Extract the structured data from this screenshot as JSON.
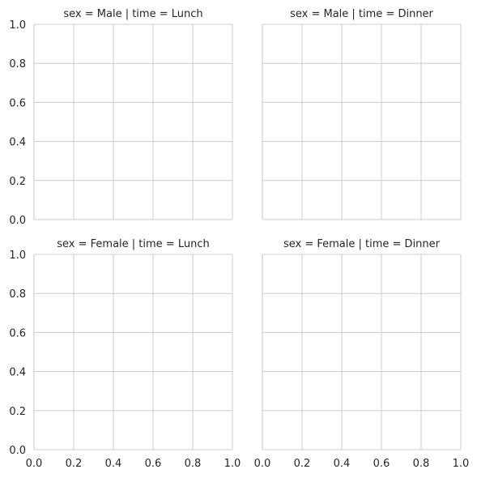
{
  "chart_data": {
    "type": "scatter",
    "layout": "facet-grid",
    "row_variable": "sex",
    "col_variable": "time",
    "xlim": [
      0,
      1
    ],
    "ylim": [
      0,
      1
    ],
    "x_ticks": [
      0.0,
      0.2,
      0.4,
      0.6,
      0.8,
      1.0
    ],
    "y_ticks": [
      0.0,
      0.2,
      0.4,
      0.6,
      0.8,
      1.0
    ],
    "x_tick_labels": [
      "0.0",
      "0.2",
      "0.4",
      "0.6",
      "0.8",
      "1.0"
    ],
    "y_tick_labels": [
      "0.0",
      "0.2",
      "0.4",
      "0.6",
      "0.8",
      "1.0"
    ],
    "grid": true,
    "facets": [
      {
        "title": "sex = Male | time = Lunch",
        "row": 0,
        "col": 0,
        "points": []
      },
      {
        "title": "sex = Male | time = Dinner",
        "row": 0,
        "col": 1,
        "points": []
      },
      {
        "title": "sex = Female | time = Lunch",
        "row": 1,
        "col": 0,
        "points": []
      },
      {
        "title": "sex = Female | time = Dinner",
        "row": 1,
        "col": 1,
        "points": []
      }
    ]
  },
  "colors": {
    "grid": "#cccccc",
    "spine": "#cccccc",
    "text": "#262626",
    "background": "#ffffff"
  }
}
